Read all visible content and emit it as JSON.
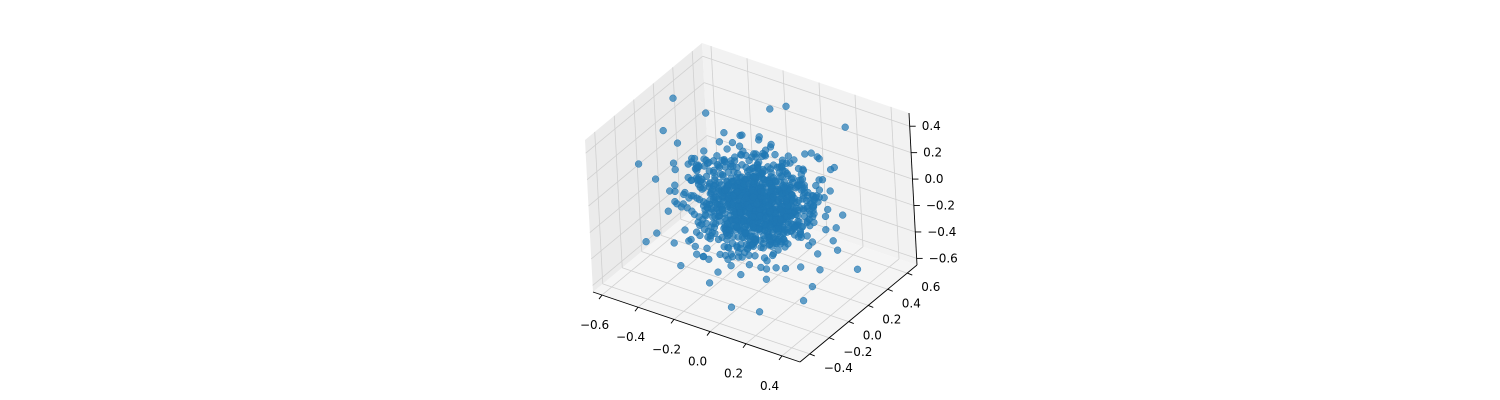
{
  "chart_data": {
    "type": "scatter",
    "projection": "3d",
    "title": "",
    "xlabel": "",
    "ylabel": "",
    "zlabel": "",
    "grid": true,
    "marker_color": "#1f77b4",
    "marker_alpha": 0.7,
    "xlim": [
      -0.65,
      0.5
    ],
    "ylim": [
      -0.5,
      0.7
    ],
    "zlim": [
      -0.65,
      0.5
    ],
    "x_ticks": [
      "−0.6",
      "−0.4",
      "−0.2",
      "0.0",
      "0.2",
      "0.4"
    ],
    "y_ticks": [
      "−0.4",
      "−0.2",
      "0.0",
      "0.2",
      "0.4",
      "0.6"
    ],
    "z_ticks": [
      "−0.6",
      "−0.4",
      "−0.2",
      "0.0",
      "0.2",
      "0.4"
    ],
    "x_tick_values": [
      -0.6,
      -0.4,
      -0.2,
      0.0,
      0.2,
      0.4
    ],
    "y_tick_values": [
      -0.4,
      -0.2,
      0.0,
      0.2,
      0.4,
      0.6
    ],
    "z_tick_values": [
      -0.6,
      -0.4,
      -0.2,
      0.0,
      0.2,
      0.4
    ],
    "distribution": "spherical cluster of ~1000 points centered at origin, std ~0.15",
    "points": [
      [
        0.0,
        0.0,
        0.0
      ],
      [
        0.05,
        0.08,
        0.02
      ],
      [
        -0.07,
        0.03,
        -0.05
      ],
      [
        0.12,
        -0.06,
        0.04
      ],
      [
        -0.15,
        0.1,
        0.08
      ],
      [
        0.2,
        0.05,
        -0.1
      ],
      [
        -0.1,
        -0.12,
        0.12
      ],
      [
        0.08,
        0.15,
        -0.14
      ],
      [
        -0.2,
        -0.05,
        -0.02
      ],
      [
        0.15,
        -0.15,
        0.1
      ],
      [
        0.03,
        0.22,
        0.05
      ],
      [
        -0.05,
        -0.2,
        -0.08
      ],
      [
        0.25,
        0.1,
        0.15
      ],
      [
        -0.25,
        0.05,
        -0.12
      ],
      [
        0.1,
        -0.25,
        -0.18
      ],
      [
        -0.12,
        0.25,
        0.18
      ],
      [
        0.3,
        -0.1,
        0.05
      ],
      [
        -0.3,
        -0.08,
        0.1
      ],
      [
        0.18,
        0.28,
        -0.05
      ],
      [
        -0.18,
        -0.28,
        0.02
      ],
      [
        0.02,
        0.02,
        0.3
      ],
      [
        -0.03,
        0.05,
        -0.3
      ],
      [
        0.22,
        -0.2,
        -0.25
      ],
      [
        -0.22,
        0.2,
        0.25
      ],
      [
        0.35,
        0.15,
        -0.2
      ],
      [
        -0.35,
        -0.15,
        0.2
      ],
      [
        0.1,
        0.35,
        0.22
      ],
      [
        -0.1,
        -0.35,
        -0.22
      ],
      [
        0.28,
        -0.28,
        0.12
      ],
      [
        -0.28,
        0.28,
        -0.12
      ],
      [
        0.4,
        0.0,
        0.1
      ],
      [
        -0.4,
        0.02,
        -0.1
      ],
      [
        0.05,
        0.4,
        -0.15
      ],
      [
        -0.05,
        -0.4,
        0.15
      ],
      [
        0.15,
        0.1,
        0.38
      ],
      [
        -0.15,
        -0.1,
        -0.38
      ],
      [
        0.32,
        0.25,
        0.28
      ],
      [
        -0.32,
        -0.25,
        -0.28
      ],
      [
        0.42,
        -0.2,
        -0.3
      ],
      [
        -0.42,
        0.3,
        0.32
      ],
      [
        -0.55,
        0.1,
        0.25
      ],
      [
        -0.6,
        0.3,
        0.35
      ],
      [
        0.45,
        0.2,
        -0.4
      ],
      [
        0.1,
        -0.45,
        -0.45
      ],
      [
        0.25,
        0.5,
        0.4
      ],
      [
        -0.2,
        0.55,
        0.3
      ],
      [
        0.38,
        -0.38,
        0.3
      ],
      [
        -0.05,
        0.45,
        0.45
      ],
      [
        0.2,
        -0.35,
        -0.5
      ],
      [
        -0.45,
        -0.3,
        -0.3
      ]
    ]
  }
}
